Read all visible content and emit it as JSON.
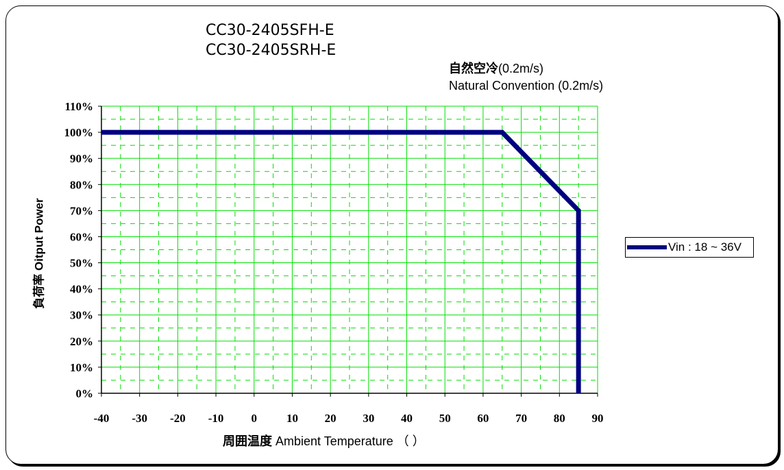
{
  "title_lines": [
    "CC30-2405SFH-E",
    "CC30-2405SRH-E"
  ],
  "condition": {
    "ja": "自然空冷",
    "ja_suffix": "(0.2m/s)",
    "en": "Natural Convention (0.2m/s)"
  },
  "colors": {
    "series": "#000080",
    "grid": "#00dd00",
    "axis": "#000000"
  },
  "chart_data": {
    "type": "line",
    "xlabel": "周囲温度 Ambient Temperature （℃）",
    "xlabel_ja": "周囲温度",
    "xlabel_en": "Ambient Temperature （ ）",
    "ylabel": "負荷率 Oitput Power",
    "xlim": [
      -40,
      90
    ],
    "ylim": [
      0,
      110
    ],
    "x_ticks": [
      "-40",
      "-30",
      "-20",
      "-10",
      "0",
      "10",
      "20",
      "30",
      "40",
      "50",
      "60",
      "70",
      "80",
      "90"
    ],
    "y_ticks": [
      "0%",
      "10%",
      "20%",
      "30%",
      "40%",
      "50%",
      "60%",
      "70%",
      "80%",
      "90%",
      "100%",
      "110%"
    ],
    "grid": true,
    "legend_position": "right",
    "series": [
      {
        "name": "Vin : 18 ~ 36V",
        "x": [
          -40,
          65,
          85,
          85
        ],
        "y": [
          100,
          100,
          70,
          0
        ]
      }
    ]
  }
}
